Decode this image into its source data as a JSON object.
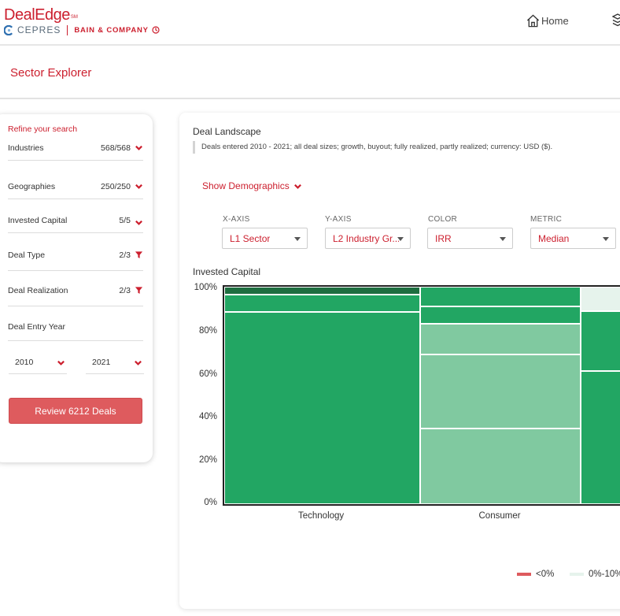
{
  "header": {
    "brand": "DealEdge",
    "brand_tm": "SM",
    "partner_cepres": "CEPRES",
    "partner_bain": "BAIN & COMPANY",
    "nav_home": "Home"
  },
  "page": {
    "title": "Sector Explorer"
  },
  "filters": {
    "heading": "Refine your search",
    "rows": [
      {
        "label": "Industries",
        "count": "568/568",
        "icon": "chevron-down-icon"
      },
      {
        "label": "Geographies",
        "count": "250/250",
        "icon": "chevron-down-icon"
      },
      {
        "label": "Invested Capital",
        "count": "5/5",
        "icon": "chevron-down-icon"
      },
      {
        "label": "Deal Type",
        "count": "2/3",
        "icon": "filter-icon"
      },
      {
        "label": "Deal Realization",
        "count": "2/3",
        "icon": "filter-icon"
      }
    ],
    "entry_year_label": "Deal Entry Year",
    "year_from": "2010",
    "year_to": "2021",
    "review_button": "Review 6212 Deals"
  },
  "landscape": {
    "title": "Deal Landscape",
    "note": "Deals entered 2010 - 2021; all deal sizes; growth, buyout; fully realized, partly realized; currency: USD ($).",
    "show_demographics": "Show Demographics",
    "controls": [
      {
        "label": "X-AXIS",
        "value": "L1 Sector"
      },
      {
        "label": "Y-AXIS",
        "value": "L2 Industry Gr..."
      },
      {
        "label": "COLOR",
        "value": "IRR"
      },
      {
        "label": "METRIC",
        "value": "Median"
      }
    ],
    "chart_label": "Invested Capital"
  },
  "colors": {
    "brand_red": "#cc1f2e",
    "dark_green": "#1e6e40",
    "green": "#22a663",
    "light_green": "#80c9a0",
    "pale_green": "#e6f3ec",
    "legend_neg": "#de5b5e"
  },
  "chart_data": {
    "type": "mosaic",
    "x": "L1 Sector",
    "y_label": "Invested Capital",
    "yticks": [
      "100%",
      "80%",
      "60%",
      "40%",
      "20%",
      "0%"
    ],
    "categories": [
      {
        "name": "Technology",
        "segments": [
          {
            "share": 0.884,
            "color": "green"
          },
          {
            "share": 0.08,
            "color": "green"
          },
          {
            "share": 0.036,
            "color": "dark_green"
          }
        ]
      },
      {
        "name": "Consumer",
        "segments": [
          {
            "share": 0.348,
            "color": "light_green"
          },
          {
            "share": 0.34,
            "color": "light_green"
          },
          {
            "share": 0.142,
            "color": "light_green"
          },
          {
            "share": 0.08,
            "color": "green"
          },
          {
            "share": 0.09,
            "color": "green"
          }
        ]
      },
      {
        "name": "",
        "segments": [
          {
            "share": 0.612,
            "color": "green"
          },
          {
            "share": 0.276,
            "color": "green"
          },
          {
            "share": 0.112,
            "color": "pale_green"
          }
        ]
      }
    ],
    "legend": [
      {
        "label": "<0%",
        "color": "legend_neg"
      },
      {
        "label": "0%-10%",
        "color": "pale_green"
      }
    ]
  }
}
